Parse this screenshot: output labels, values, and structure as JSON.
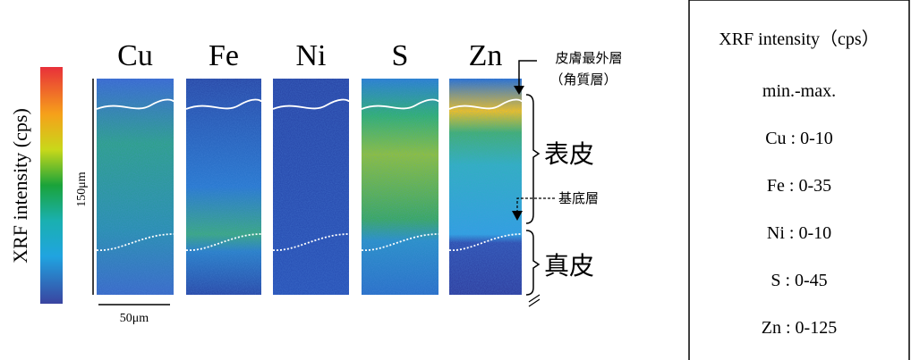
{
  "colorbar": {
    "label": "XRF intensity (cps)"
  },
  "panels": [
    {
      "label": "Cu"
    },
    {
      "label": "Fe"
    },
    {
      "label": "Ni"
    },
    {
      "label": "S"
    },
    {
      "label": "Zn"
    }
  ],
  "scale": {
    "vertical": "150μm",
    "horizontal": "50μm"
  },
  "annotations": {
    "outermost": "皮膚最外層",
    "stratum": "（角質層）",
    "epidermis": "表皮",
    "basal": "基底層",
    "dermis": "真皮"
  },
  "legend": {
    "title": "XRF intensity（cps）",
    "subtitle": "min.-max.",
    "items": [
      "Cu : 0-10",
      "Fe : 0-35",
      "Ni : 0-10",
      "S : 0-45",
      "Zn : 0-125"
    ]
  }
}
